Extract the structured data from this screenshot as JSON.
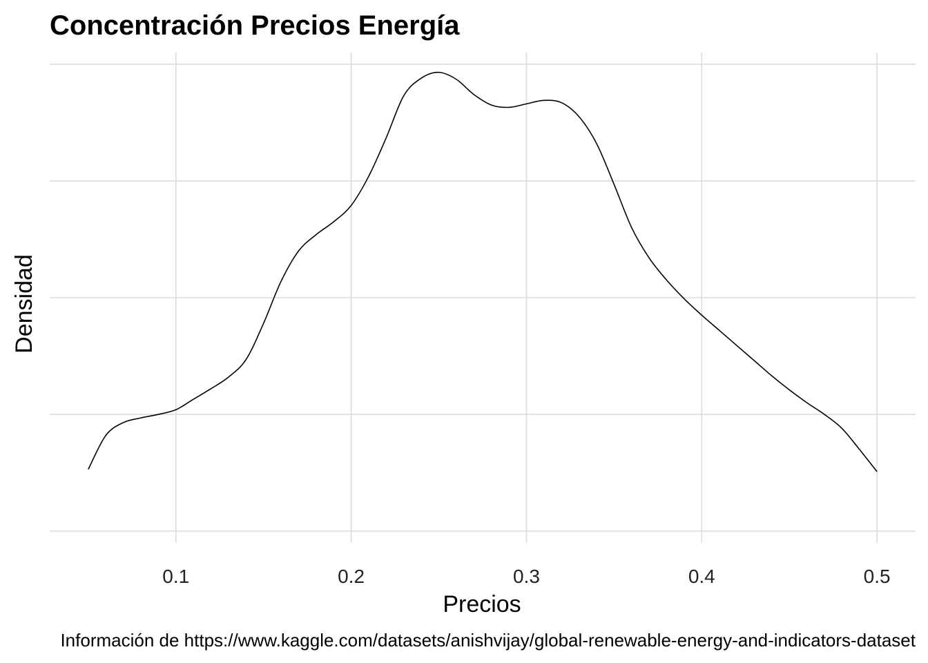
{
  "chart_data": {
    "type": "line",
    "title": "Concentración Precios Energía",
    "xlabel": "Precios",
    "ylabel": "Densidad",
    "caption": "Información de https://www.kaggle.com/datasets/anishvijay/global-renewable-energy-and-indicators-dataset",
    "xlim": [
      0.028,
      0.522
    ],
    "ylim": [
      -0.1,
      4.1
    ],
    "x_ticks": [
      0.1,
      0.2,
      0.3,
      0.4,
      0.5
    ],
    "x_tick_labels": [
      "0.1",
      "0.2",
      "0.3",
      "0.4",
      "0.5"
    ],
    "y_gridlines": [
      0,
      1,
      2,
      3,
      4
    ],
    "y_tick_labels_visible": false,
    "grid": true,
    "series": [
      {
        "name": "densidad",
        "color": "#000000",
        "x": [
          0.05,
          0.06,
          0.07,
          0.08,
          0.09,
          0.1,
          0.11,
          0.12,
          0.13,
          0.14,
          0.15,
          0.16,
          0.17,
          0.18,
          0.19,
          0.2,
          0.21,
          0.22,
          0.23,
          0.24,
          0.25,
          0.26,
          0.27,
          0.28,
          0.29,
          0.3,
          0.31,
          0.32,
          0.33,
          0.34,
          0.35,
          0.36,
          0.37,
          0.38,
          0.39,
          0.4,
          0.41,
          0.42,
          0.43,
          0.44,
          0.45,
          0.46,
          0.47,
          0.48,
          0.49,
          0.5
        ],
        "y": [
          0.53,
          0.82,
          0.93,
          0.97,
          1.0,
          1.04,
          1.13,
          1.22,
          1.32,
          1.47,
          1.78,
          2.14,
          2.4,
          2.54,
          2.65,
          2.79,
          3.04,
          3.37,
          3.73,
          3.88,
          3.93,
          3.87,
          3.74,
          3.65,
          3.63,
          3.66,
          3.69,
          3.67,
          3.55,
          3.32,
          2.97,
          2.6,
          2.34,
          2.15,
          1.99,
          1.85,
          1.72,
          1.59,
          1.46,
          1.33,
          1.21,
          1.1,
          1.0,
          0.88,
          0.7,
          0.51
        ]
      }
    ]
  }
}
